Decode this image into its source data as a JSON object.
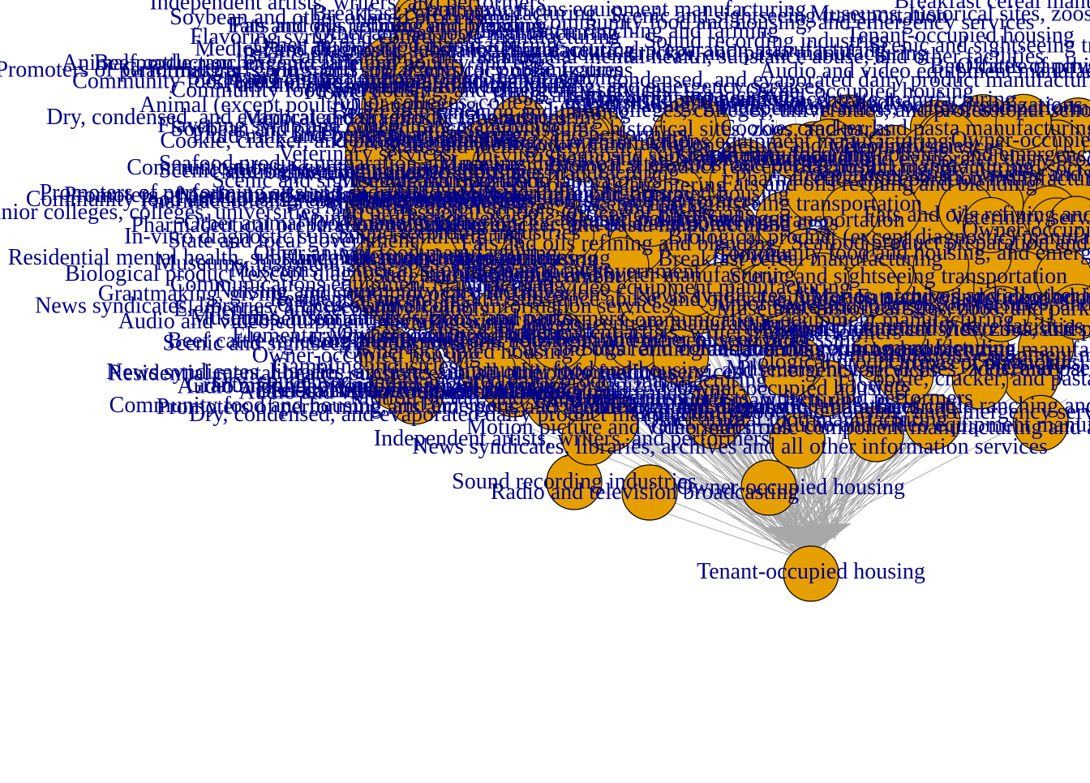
{
  "colors": {
    "background": "#ffffff",
    "node_fill": "#E69F00",
    "node_stroke": "#000000",
    "edge": "#A8A8A8",
    "label": "#00008B"
  },
  "nodes": [
    {
      "id": "tenant",
      "label": "Tenant-occupied housing"
    },
    {
      "id": "owner",
      "label": "Owner-occupied housing"
    },
    {
      "id": "radio",
      "label": "Radio and television broadcasting"
    },
    {
      "id": "sound",
      "label": "Sound recording industries"
    },
    {
      "id": "news",
      "label": "News syndicates, libraries, archives and all other information services"
    },
    {
      "id": "indep",
      "label": "Independent artists, writers, and performers"
    },
    {
      "id": "motion",
      "label": "Motion picture and video industries"
    },
    {
      "id": "promoters",
      "label": "Promoters of performing arts and sports and agents for public figures"
    },
    {
      "id": "grantmaking",
      "label": "Grantmaking, giving, and social advocacy organizations"
    },
    {
      "id": "gambling",
      "label": "Gambling industries"
    },
    {
      "id": "elementary",
      "label": "Elementary and secondary schools"
    },
    {
      "id": "museums",
      "label": "Museums, historical sites, zoos, and parks"
    },
    {
      "id": "offices",
      "label": "Offices of physicians"
    },
    {
      "id": "nursing",
      "label": "Nursing and community care facilities"
    },
    {
      "id": "biological",
      "label": "Biological product (except diagnostic) manufacturing"
    },
    {
      "id": "residential",
      "label": "Residential mental health, substance abuse, and other facilities"
    },
    {
      "id": "statelocal",
      "label": "State and local government"
    },
    {
      "id": "invitro",
      "label": "In-vitro diagnostic substance manufacturing"
    },
    {
      "id": "pharma",
      "label": "Pharmaceutical preparation manufacturing"
    },
    {
      "id": "junior",
      "label": "Junior colleges, colleges, universities, and professional schools"
    },
    {
      "id": "community",
      "label": "Community food and housing, and emergency services"
    },
    {
      "id": "medical",
      "label": "Medical and diagnostic laboratories"
    },
    {
      "id": "scenic",
      "label": "Scenic and sightseeing transportation"
    },
    {
      "id": "seafood",
      "label": "Seafood product preparation and packaging"
    },
    {
      "id": "veterinary",
      "label": "Veterinary services"
    },
    {
      "id": "cookie",
      "label": "Cookie, cracker, and pasta manufacturing"
    },
    {
      "id": "fluid",
      "label": "Fluid milk and butter manufacturing"
    },
    {
      "id": "dry",
      "label": "Dry, condensed, and evaporated dairy product manufacturing"
    },
    {
      "id": "animal",
      "label": "Animal (except poultry) slaughtering"
    },
    {
      "id": "beef",
      "label": "Beef cattle ranching and farming"
    },
    {
      "id": "animalprod",
      "label": "Animal production, except cattle and poultry and eggs"
    },
    {
      "id": "soybean",
      "label": "Soybean and other oilseed processing"
    },
    {
      "id": "fats",
      "label": "Fats and oils refining and blending"
    },
    {
      "id": "flavoring",
      "label": "Flavoring syrup and concentrate manufacturing"
    },
    {
      "id": "other",
      "label": "Other animal food manufacturing"
    },
    {
      "id": "flour",
      "label": "Flour milling and malt manufacturing"
    },
    {
      "id": "flowers",
      "label": "Flowers"
    },
    {
      "id": "sugar",
      "label": "Sugar and confectionery product manufacturing"
    },
    {
      "id": "breakfast",
      "label": "Breakfast cereal manufacturing"
    },
    {
      "id": "audio",
      "label": "Audio and video equipment manufacturing"
    },
    {
      "id": "apparatus",
      "label": "Other electronic component manufacturing and apparatus manufacturing"
    },
    {
      "id": "communications",
      "label": "Communications equipment manufacturing"
    }
  ]
}
